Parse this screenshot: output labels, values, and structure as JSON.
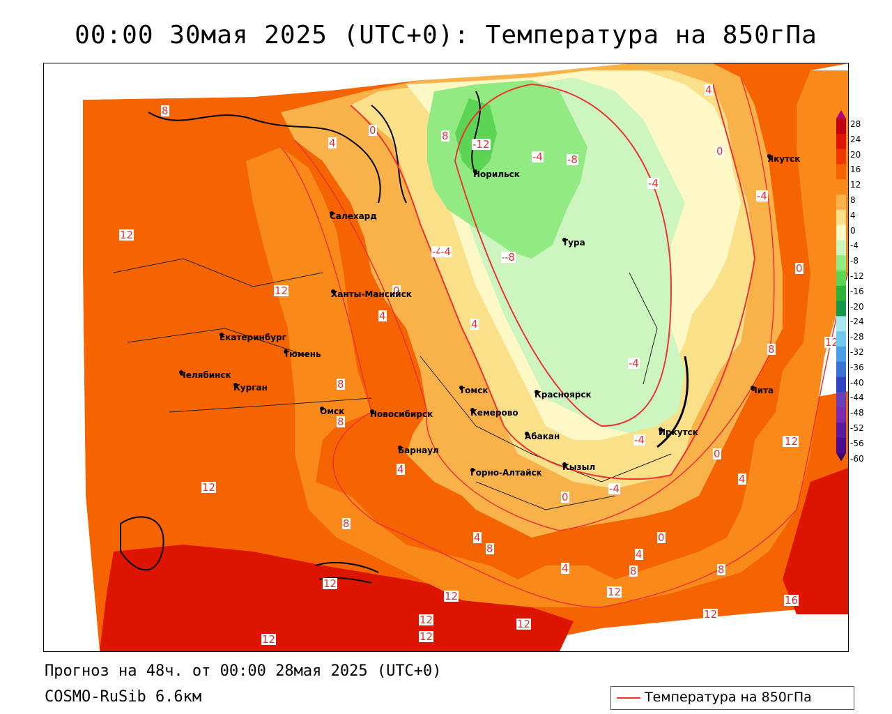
{
  "title": "00:00 30мая 2025 (UTC+0): Температура на 850гПа",
  "footer": {
    "forecast": "Прогноз на 48ч. от 00:00 28мая 2025 (UTC+0)",
    "model": "COSMO-RuSib 6.6км"
  },
  "legend": {
    "label": "Температура на 850гПа",
    "line_color": "#ee3333"
  },
  "colorbar": {
    "labels": [
      "28",
      "24",
      "20",
      "16",
      "12",
      "8",
      "4",
      "0",
      "-4",
      "-8",
      "-12",
      "-16",
      "-20",
      "-24",
      "-28",
      "-32",
      "-36",
      "-40",
      "-44",
      "-48",
      "-52",
      "-56",
      "-60"
    ],
    "colors": [
      "#b0007a",
      "#c00010",
      "#dd1500",
      "#ee3a00",
      "#f56400",
      "#f98a1a",
      "#f9b24a",
      "#fbe08a",
      "#fdf8c6",
      "#cdf5c0",
      "#92ea82",
      "#5cd454",
      "#2eb43a",
      "#16984a",
      "#a8e6f2",
      "#70c8ee",
      "#4a9fe6",
      "#3a72d6",
      "#3046c0",
      "#6a40b8",
      "#7b2bb0",
      "#5a1aa0",
      "#4b0b8e",
      "#3b0070"
    ]
  },
  "cities": [
    {
      "name": "Салехард"
    },
    {
      "name": "Норильск"
    },
    {
      "name": "Тура"
    },
    {
      "name": "Якутск"
    },
    {
      "name": "Ханты-Мансийск"
    },
    {
      "name": "Екатеринбург"
    },
    {
      "name": "Тюмень"
    },
    {
      "name": "Челябинск"
    },
    {
      "name": "Курган"
    },
    {
      "name": "Омск"
    },
    {
      "name": "Новосибирск"
    },
    {
      "name": "Томск"
    },
    {
      "name": "Кемерово"
    },
    {
      "name": "Красноярск"
    },
    {
      "name": "Абакан"
    },
    {
      "name": "Иркутск"
    },
    {
      "name": "Чита"
    },
    {
      "name": "Барнаул"
    },
    {
      "name": "Горно-Алтайск"
    },
    {
      "name": "Кызыл"
    }
  ],
  "isolines": [
    "8",
    "4",
    "0",
    "8",
    "-12",
    "-8",
    "-4",
    "4",
    "0",
    "-4",
    "12",
    "0",
    "-4",
    "-8",
    "0",
    "12",
    "4",
    "-4",
    "8",
    "8",
    "12",
    "4",
    "0",
    "-4",
    "-4",
    "8",
    "12",
    "0",
    "4",
    "-4",
    "12",
    "8",
    "4",
    "8",
    "4",
    "0",
    "4",
    "12",
    "8",
    "8",
    "4",
    "12",
    "12",
    "12",
    "12",
    "12",
    "12",
    "12",
    "16",
    "12",
    "-8",
    "-4"
  ]
}
